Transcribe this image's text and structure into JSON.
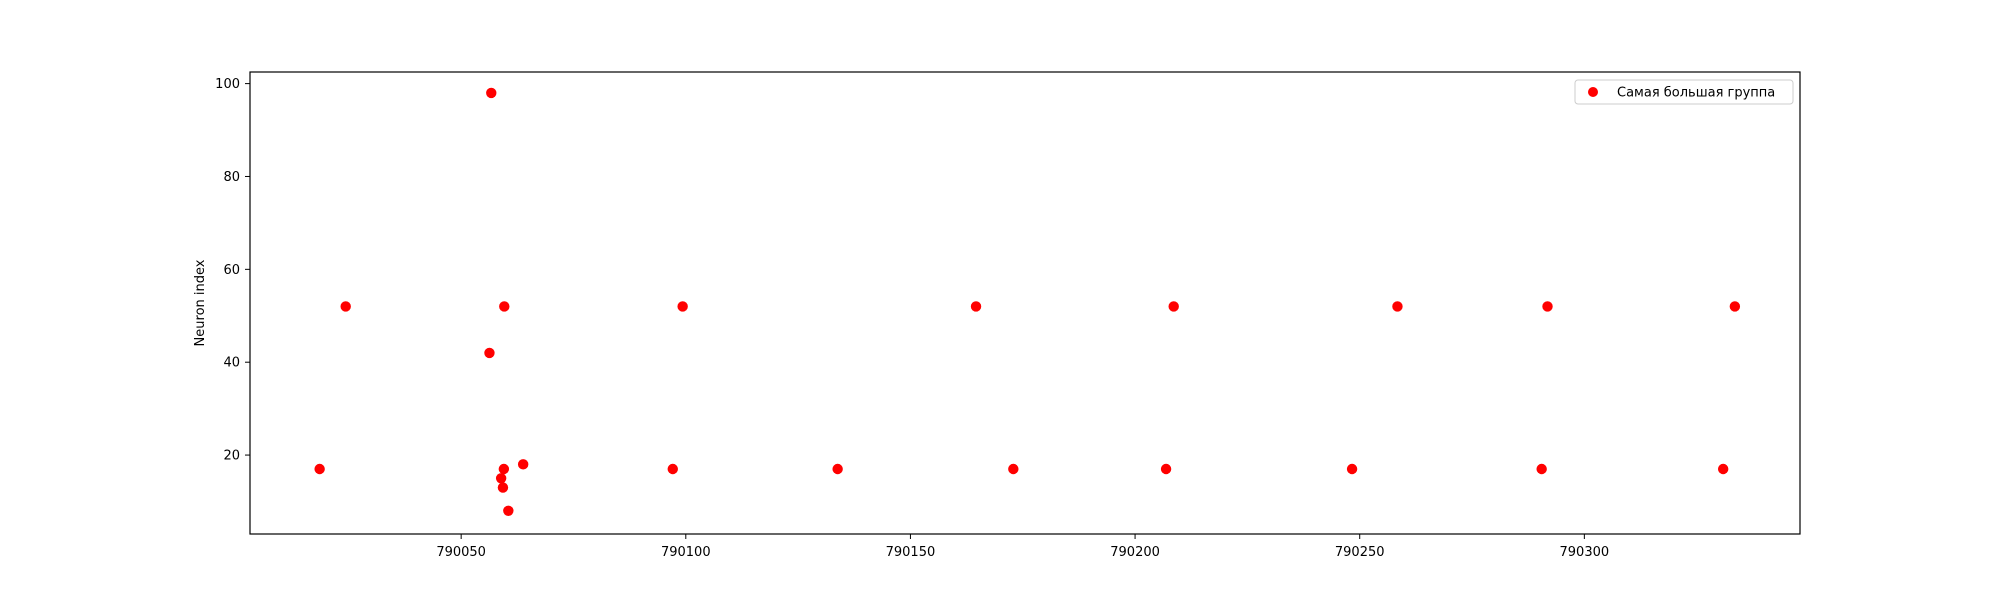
{
  "chart_data": {
    "type": "scatter",
    "title": "",
    "xlabel": "",
    "ylabel": "Neuron index",
    "xlim": [
      790003,
      790348
    ],
    "ylim": [
      3,
      102.5
    ],
    "xticks": [
      790050,
      790100,
      790150,
      790200,
      790250,
      790300
    ],
    "xtick_labels": [
      "790050",
      "790100",
      "790150",
      "790200",
      "790250",
      "790300"
    ],
    "yticks": [
      20,
      40,
      60,
      80,
      100
    ],
    "ytick_labels": [
      "20",
      "40",
      "60",
      "80",
      "100"
    ],
    "grid": false,
    "legend_position": "top-right",
    "series": [
      {
        "name": "Самая большая группа",
        "color": "#ff0000",
        "marker": "circle",
        "points": [
          {
            "x": 790018.5,
            "y": 17
          },
          {
            "x": 790024.3,
            "y": 52
          },
          {
            "x": 790056.3,
            "y": 42
          },
          {
            "x": 790056.7,
            "y": 98
          },
          {
            "x": 790058.9,
            "y": 15
          },
          {
            "x": 790059.3,
            "y": 13
          },
          {
            "x": 790059.5,
            "y": 17
          },
          {
            "x": 790059.6,
            "y": 52
          },
          {
            "x": 790060.5,
            "y": 8
          },
          {
            "x": 790063.8,
            "y": 18
          },
          {
            "x": 790097.1,
            "y": 17
          },
          {
            "x": 790099.3,
            "y": 52
          },
          {
            "x": 790133.8,
            "y": 17
          },
          {
            "x": 790164.6,
            "y": 52
          },
          {
            "x": 790172.9,
            "y": 17
          },
          {
            "x": 790206.9,
            "y": 17
          },
          {
            "x": 790208.6,
            "y": 52
          },
          {
            "x": 790248.3,
            "y": 17
          },
          {
            "x": 790258.4,
            "y": 52
          },
          {
            "x": 790290.5,
            "y": 17
          },
          {
            "x": 790291.8,
            "y": 52
          },
          {
            "x": 790330.9,
            "y": 17
          },
          {
            "x": 790333.5,
            "y": 52
          }
        ]
      }
    ]
  }
}
